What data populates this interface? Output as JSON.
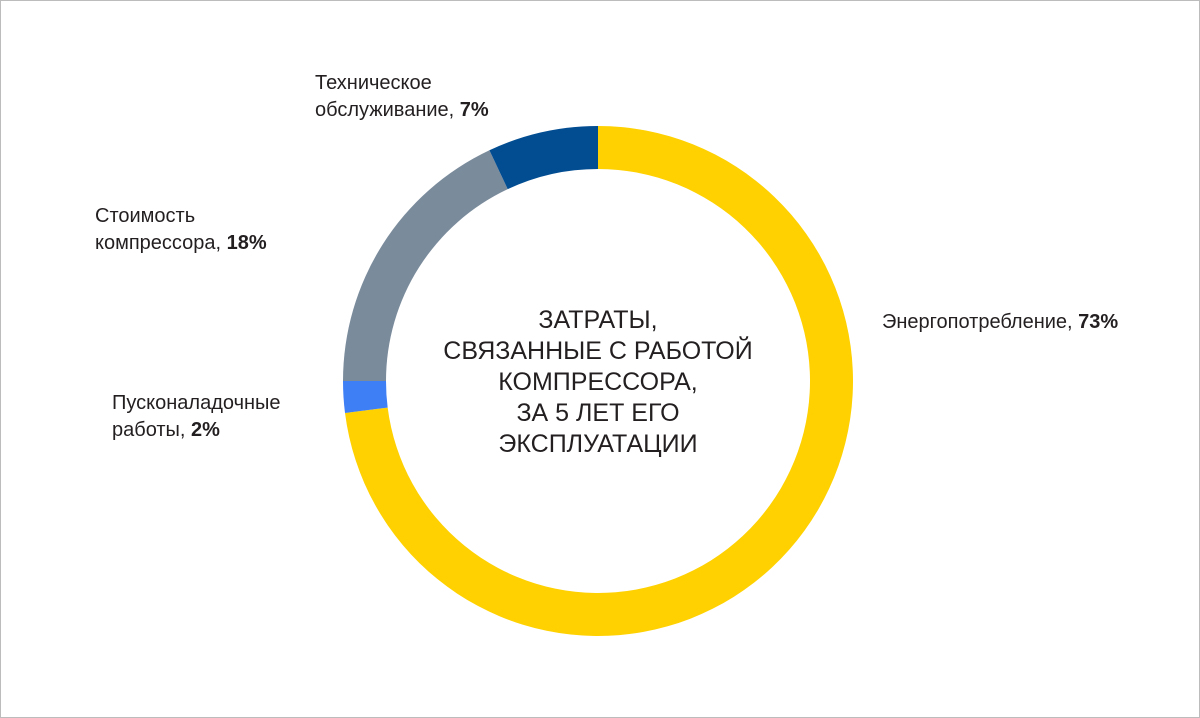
{
  "chart_data": {
    "type": "pie",
    "donut": true,
    "center_title_lines": [
      "ЗАТРАТЫ,",
      "СВЯЗАННЫЕ С РАБОТОЙ",
      "КОМПРЕССОРА,",
      "ЗА 5 ЛЕТ ЕГО",
      "ЭКСПЛУАТАЦИИ"
    ],
    "slices": [
      {
        "label_lines": [
          "Энергопотребление, "
        ],
        "value_text": "73%",
        "value": 73,
        "color": "#ffd100"
      },
      {
        "label_lines": [
          "Пусконаладочные",
          "работы, "
        ],
        "value_text": "2%",
        "value": 2,
        "color": "#3f7ff5"
      },
      {
        "label_lines": [
          "Стоимость",
          "компрессора, "
        ],
        "value_text": "18%",
        "value": 18,
        "color": "#7a8b9c"
      },
      {
        "label_lines": [
          "Техническое",
          "обслуживание, "
        ],
        "value_text": "7%",
        "value": 7,
        "color": "#024d92"
      }
    ]
  }
}
